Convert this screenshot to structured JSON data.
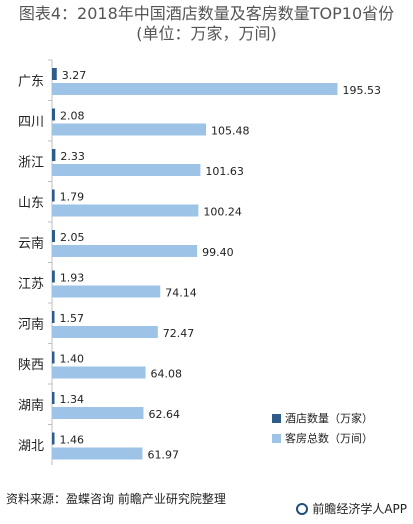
{
  "title": {
    "line1": "图表4：2018年中国酒店数量及客房数量TOP10省份",
    "line2": "(单位：万家，万间)"
  },
  "source": "资料来源：盈蝶咨询 前瞻产业研究院整理",
  "brand": "前瞻经济学人APP",
  "colors": {
    "series1": "#2e5b8a",
    "series2": "#9dc3e6",
    "axis": "#bfbfbf"
  },
  "chart_data": {
    "type": "bar",
    "orientation": "horizontal",
    "categories": [
      "广东",
      "四川",
      "浙江",
      "山东",
      "云南",
      "江苏",
      "河南",
      "陕西",
      "湖南",
      "湖北"
    ],
    "series": [
      {
        "name": "酒店数量（万家）",
        "values": [
          3.27,
          2.08,
          2.33,
          1.79,
          2.05,
          1.93,
          1.57,
          1.4,
          1.34,
          1.46
        ],
        "labels": [
          "3.27",
          "2.08",
          "2.33",
          "1.79",
          "2.05",
          "1.93",
          "1.57",
          "1.40",
          "1.34",
          "1.46"
        ]
      },
      {
        "name": "客房总数（万间）",
        "values": [
          195.53,
          105.48,
          101.63,
          100.24,
          99.4,
          74.14,
          72.47,
          64.08,
          62.64,
          61.97
        ],
        "labels": [
          "195.53",
          "105.48",
          "101.63",
          "100.24",
          "99.40",
          "74.14",
          "72.47",
          "64.08",
          "62.64",
          "61.97"
        ]
      }
    ],
    "xlim": [
      0,
      200
    ],
    "grid": false,
    "legend_position": "bottom-right"
  }
}
